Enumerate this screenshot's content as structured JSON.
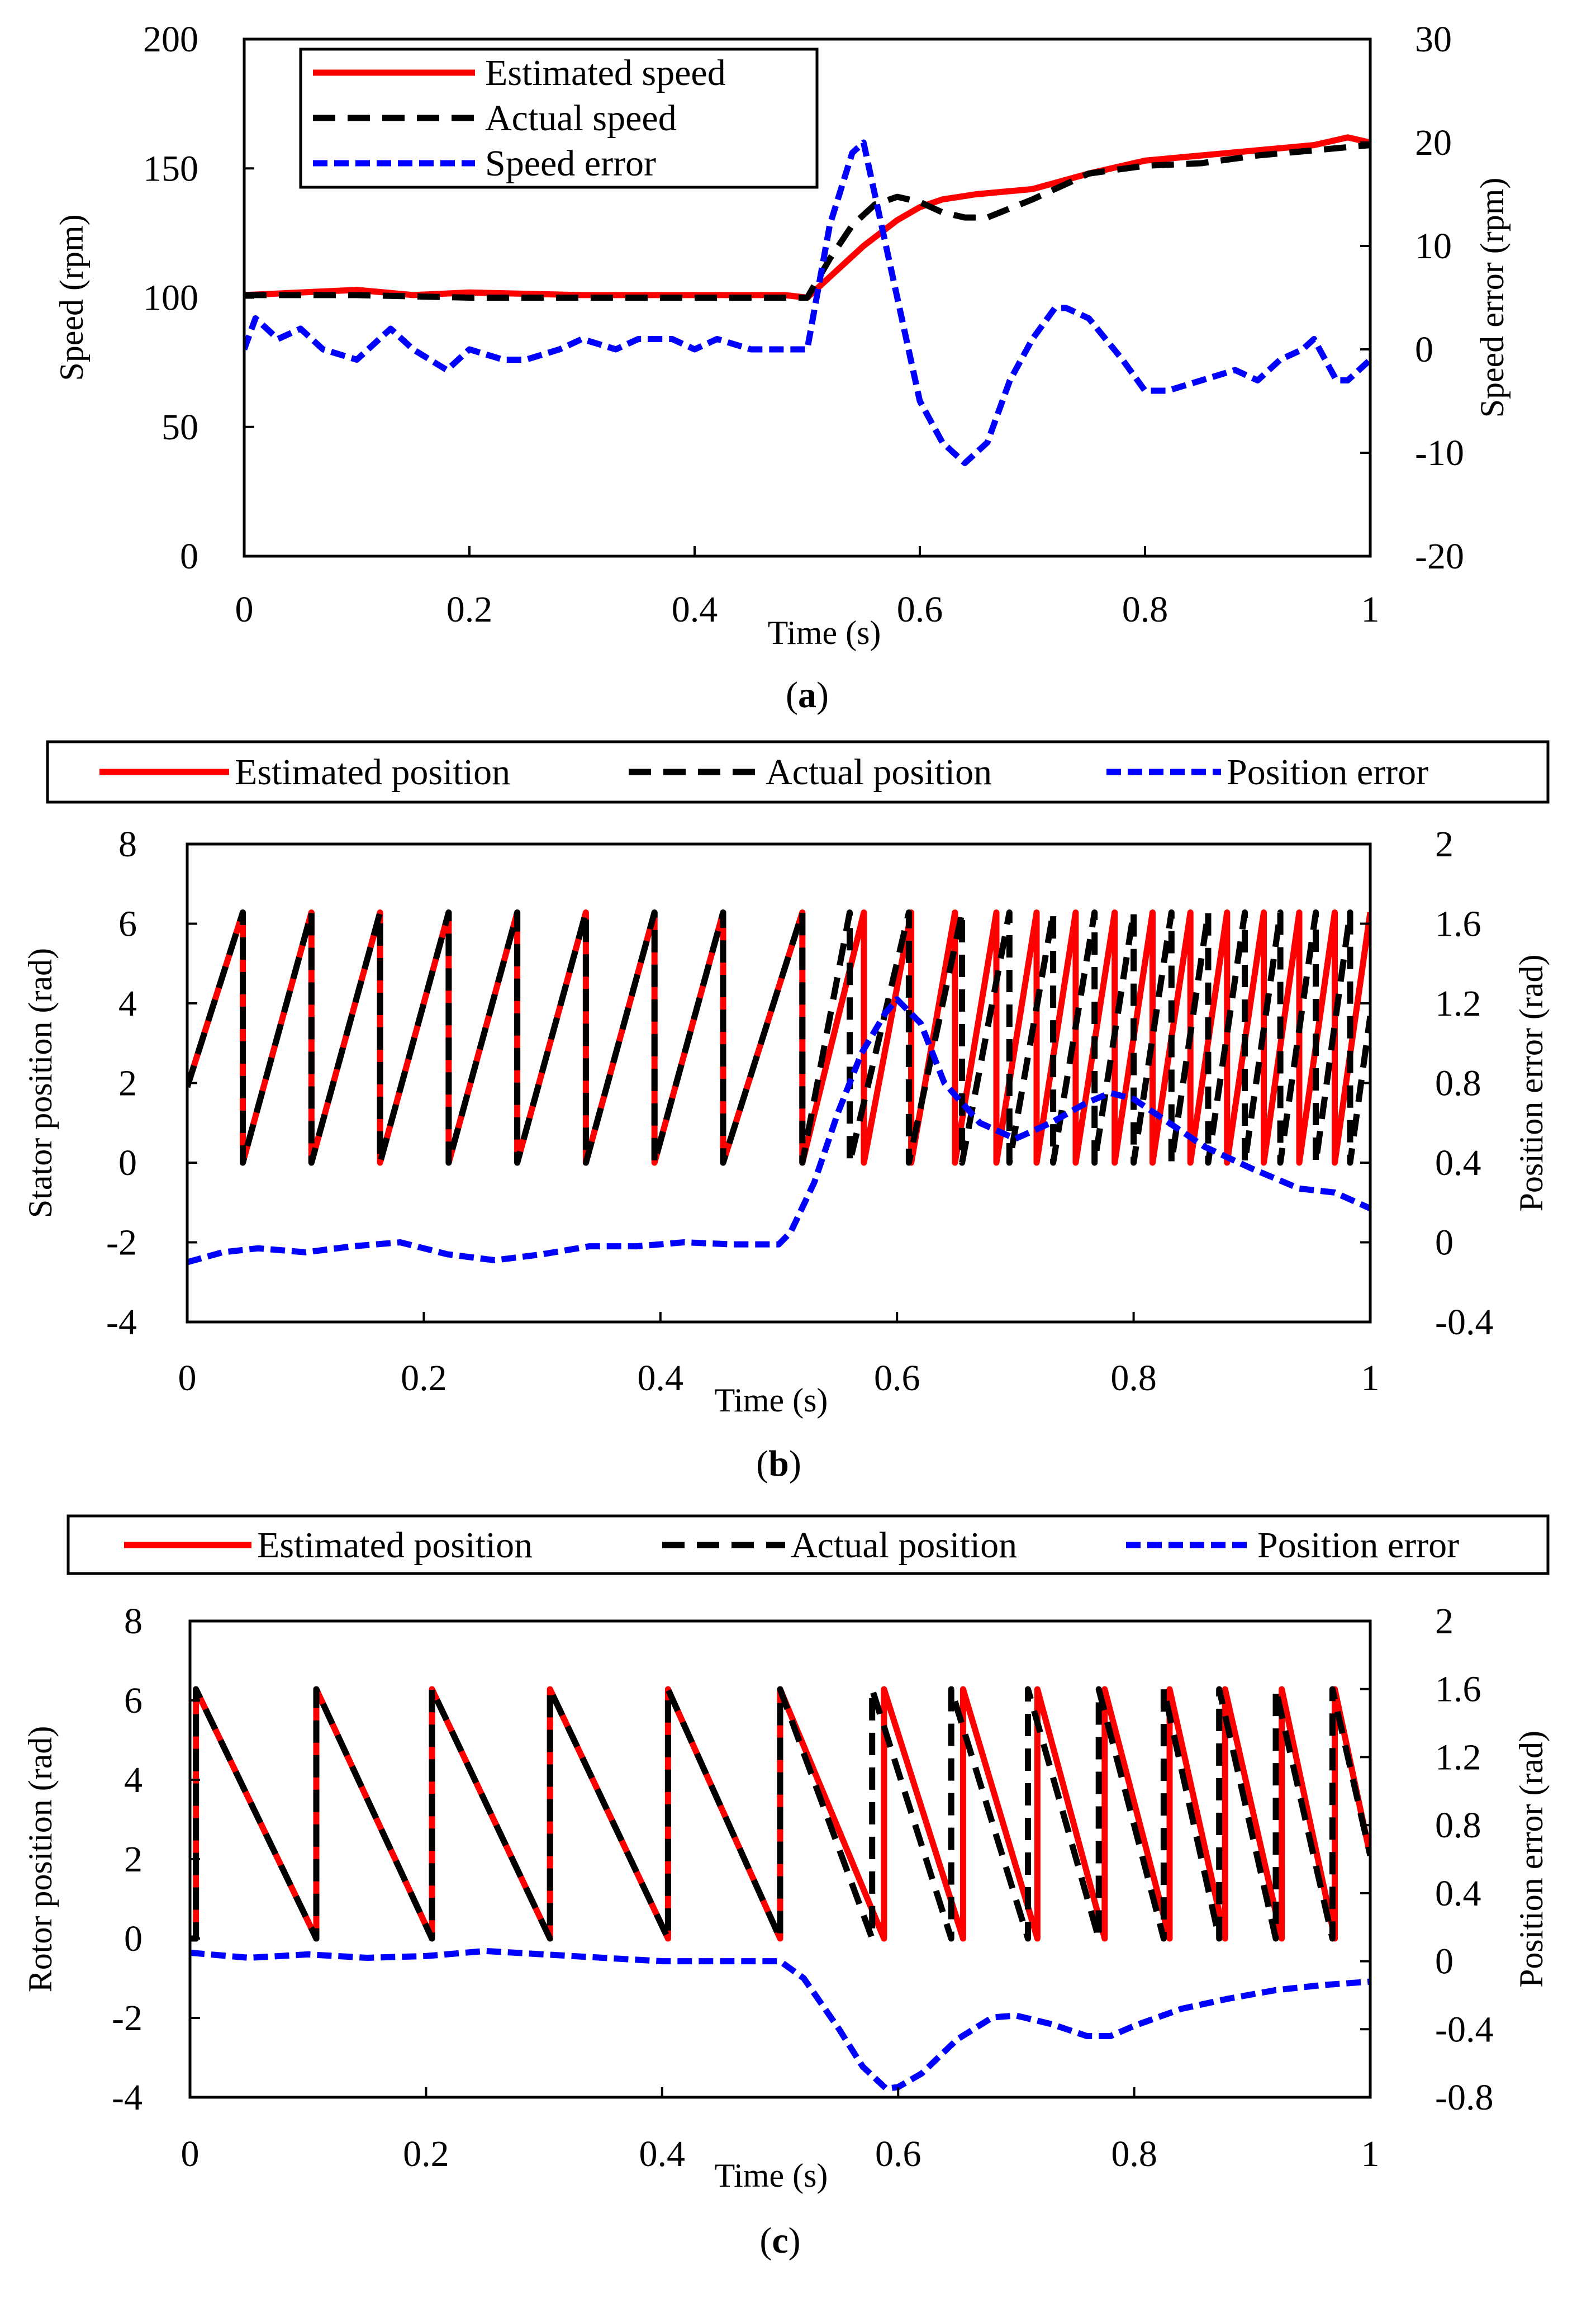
{
  "chart_data": [
    {
      "type": "line",
      "id": "a",
      "caption": "(a)",
      "xlabel": "Time (s)",
      "ylabel": "Speed  (rpm)",
      "y2label": "Speed error (rpm)",
      "xlim": [
        0,
        1
      ],
      "ylim": [
        0,
        200
      ],
      "y2lim": [
        -20,
        30
      ],
      "xticks": [
        "0",
        "0.2",
        "0.4",
        "0.6",
        "0.8",
        "1"
      ],
      "yticks": [
        "0",
        "50",
        "100",
        "150",
        "200"
      ],
      "y2ticks": [
        "-20",
        "-10",
        "0",
        "10",
        "20",
        "30"
      ],
      "legend": [
        "Estimated speed",
        "Actual speed",
        "Speed error"
      ],
      "colors": {
        "estimated": "#ff0000",
        "actual": "#000000",
        "error": "#0000ff"
      },
      "series": [
        {
          "name": "Estimated speed",
          "axis": "left",
          "style": "solid",
          "color": "#ff0000",
          "x": [
            0,
            0.05,
            0.1,
            0.15,
            0.2,
            0.3,
            0.4,
            0.48,
            0.5,
            0.52,
            0.55,
            0.58,
            0.6,
            0.62,
            0.65,
            0.7,
            0.75,
            0.8,
            0.85,
            0.9,
            0.95,
            0.98,
            1.0
          ],
          "y": [
            101,
            102,
            103,
            101,
            102,
            101,
            101,
            101,
            100,
            108,
            120,
            130,
            135,
            138,
            140,
            142,
            148,
            153,
            155,
            157,
            159,
            162,
            160
          ]
        },
        {
          "name": "Actual speed",
          "axis": "left",
          "style": "dashed",
          "color": "#000000",
          "x": [
            0,
            0.05,
            0.1,
            0.2,
            0.3,
            0.4,
            0.5,
            0.52,
            0.54,
            0.56,
            0.58,
            0.6,
            0.62,
            0.64,
            0.66,
            0.7,
            0.75,
            0.8,
            0.85,
            0.9,
            0.95,
            1.0
          ],
          "y": [
            101,
            101,
            101,
            100,
            100,
            100,
            100,
            115,
            128,
            136,
            139,
            137,
            133,
            131,
            131,
            138,
            148,
            151,
            152,
            155,
            157,
            159
          ]
        },
        {
          "name": "Speed error",
          "axis": "right",
          "style": "dashed",
          "color": "#0000ff",
          "x": [
            0,
            0.01,
            0.03,
            0.05,
            0.07,
            0.1,
            0.13,
            0.15,
            0.18,
            0.2,
            0.23,
            0.25,
            0.28,
            0.3,
            0.33,
            0.35,
            0.38,
            0.4,
            0.42,
            0.45,
            0.47,
            0.5,
            0.52,
            0.54,
            0.55,
            0.57,
            0.59,
            0.6,
            0.62,
            0.64,
            0.66,
            0.68,
            0.7,
            0.72,
            0.73,
            0.75,
            0.78,
            0.8,
            0.82,
            0.85,
            0.88,
            0.9,
            0.92,
            0.94,
            0.95,
            0.97,
            0.98,
            1.0
          ],
          "y": [
            0,
            3,
            1,
            2,
            0,
            -1,
            2,
            0,
            -2,
            0,
            -1,
            -1,
            0,
            1,
            0,
            1,
            1,
            0,
            1,
            0,
            0,
            0,
            12,
            19,
            20,
            10,
            0,
            -5,
            -9,
            -11,
            -9,
            -3,
            1,
            4,
            4,
            3,
            -1,
            -4,
            -4,
            -3,
            -2,
            -3,
            -1,
            0,
            1,
            -3,
            -3,
            -1
          ]
        }
      ]
    },
    {
      "type": "line",
      "id": "b",
      "caption": "(b)",
      "xlabel": "Time (s)",
      "ylabel": "Stator position (rad)",
      "y2label": "Position error (rad)",
      "xlim": [
        0,
        1
      ],
      "ylim": [
        -4,
        8
      ],
      "y2lim": [
        -0.4,
        2
      ],
      "xticks": [
        "0",
        "0.2",
        "0.4",
        "0.6",
        "0.8",
        "1"
      ],
      "yticks": [
        "-4",
        "-2",
        "0",
        "2",
        "4",
        "6",
        "8"
      ],
      "y2ticks": [
        "-0.4",
        "0",
        "0.4",
        "0.8",
        "1.2",
        "1.6",
        "2"
      ],
      "legend": [
        "Estimated position",
        "Actual position",
        "Position error"
      ],
      "colors": {
        "estimated": "#ff0000",
        "actual": "#000000",
        "error": "#0000ff"
      },
      "sawtooth": {
        "direction": "rising",
        "top": 6.28,
        "bottom": 0,
        "start_value": 1.9,
        "estimated_resets": [
          0.047,
          0.105,
          0.163,
          0.221,
          0.279,
          0.337,
          0.395,
          0.453,
          0.52,
          0.572,
          0.612,
          0.649,
          0.684,
          0.718,
          0.751,
          0.784,
          0.816,
          0.848,
          0.879,
          0.91,
          0.94,
          0.97
        ],
        "actual_resets": [
          0.047,
          0.105,
          0.163,
          0.221,
          0.279,
          0.337,
          0.395,
          0.453,
          0.52,
          0.56,
          0.61,
          0.655,
          0.695,
          0.732,
          0.767,
          0.8,
          0.832,
          0.863,
          0.894,
          0.924,
          0.954,
          0.983
        ]
      },
      "series": [
        {
          "name": "Estimated position",
          "axis": "left",
          "style": "solid",
          "color": "#ff0000"
        },
        {
          "name": "Actual position",
          "axis": "left",
          "style": "dashed",
          "color": "#000000"
        },
        {
          "name": "Position error",
          "axis": "right",
          "style": "dashed",
          "color": "#0000ff",
          "x": [
            0,
            0.03,
            0.06,
            0.1,
            0.14,
            0.18,
            0.22,
            0.26,
            0.3,
            0.34,
            0.38,
            0.42,
            0.46,
            0.5,
            0.51,
            0.53,
            0.55,
            0.57,
            0.59,
            0.6,
            0.62,
            0.64,
            0.67,
            0.7,
            0.73,
            0.76,
            0.78,
            0.8,
            0.83,
            0.86,
            0.9,
            0.94,
            0.97,
            1.0
          ],
          "y": [
            -0.1,
            -0.05,
            -0.03,
            -0.05,
            -0.02,
            0.0,
            -0.06,
            -0.09,
            -0.06,
            -0.02,
            -0.02,
            0.0,
            -0.01,
            -0.01,
            0.05,
            0.3,
            0.65,
            0.95,
            1.15,
            1.22,
            1.1,
            0.8,
            0.6,
            0.52,
            0.6,
            0.7,
            0.75,
            0.72,
            0.6,
            0.48,
            0.37,
            0.27,
            0.25,
            0.17
          ]
        }
      ]
    },
    {
      "type": "line",
      "id": "c",
      "caption": "(c)",
      "xlabel": "Time (s)",
      "ylabel": "Rotor position (rad)",
      "y2label": "Position error (rad)",
      "xlim": [
        0,
        1
      ],
      "ylim": [
        -4,
        8
      ],
      "y2lim": [
        -0.8,
        2
      ],
      "xticks": [
        "0",
        "0.2",
        "0.4",
        "0.6",
        "0.8",
        "1"
      ],
      "yticks": [
        "-4",
        "-2",
        "0",
        "2",
        "4",
        "6",
        "8"
      ],
      "y2ticks": [
        "-0.8",
        "-0.4",
        "0",
        "0.4",
        "0.8",
        "1.2",
        "1.6",
        "2"
      ],
      "legend": [
        "Estimated position",
        "Actual position",
        "Position error"
      ],
      "colors": {
        "estimated": "#ff0000",
        "actual": "#000000",
        "error": "#0000ff"
      },
      "sawtooth": {
        "direction": "falling",
        "top": 6.28,
        "bottom": 0,
        "start_value": 0.0,
        "estimated_resets": [
          0.005,
          0.107,
          0.205,
          0.305,
          0.405,
          0.5,
          0.588,
          0.655,
          0.718,
          0.775,
          0.83,
          0.877,
          0.925,
          0.97
        ],
        "actual_resets": [
          0.005,
          0.107,
          0.205,
          0.305,
          0.405,
          0.5,
          0.578,
          0.645,
          0.71,
          0.77,
          0.825,
          0.872,
          0.92,
          0.968
        ]
      },
      "series": [
        {
          "name": "Estimated position",
          "axis": "left",
          "style": "solid",
          "color": "#ff0000"
        },
        {
          "name": "Actual position",
          "axis": "left",
          "style": "dashed",
          "color": "#000000"
        },
        {
          "name": "Position error",
          "axis": "right",
          "style": "dashed",
          "color": "#0000ff",
          "x": [
            0,
            0.05,
            0.1,
            0.15,
            0.2,
            0.25,
            0.3,
            0.35,
            0.4,
            0.45,
            0.5,
            0.52,
            0.55,
            0.57,
            0.59,
            0.6,
            0.62,
            0.65,
            0.68,
            0.7,
            0.73,
            0.76,
            0.78,
            0.8,
            0.84,
            0.88,
            0.92,
            0.96,
            1.0
          ],
          "y": [
            0.05,
            0.02,
            0.04,
            0.02,
            0.03,
            0.06,
            0.04,
            0.02,
            0.0,
            0.0,
            0.0,
            -0.1,
            -0.4,
            -0.62,
            -0.75,
            -0.74,
            -0.66,
            -0.46,
            -0.33,
            -0.32,
            -0.37,
            -0.44,
            -0.44,
            -0.38,
            -0.28,
            -0.22,
            -0.17,
            -0.14,
            -0.12
          ]
        }
      ]
    }
  ]
}
